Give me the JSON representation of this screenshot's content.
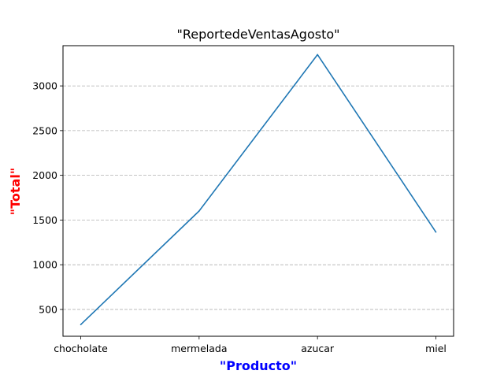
{
  "chart_data": {
    "type": "line",
    "title": "\"ReportedeVentasAgosto\"",
    "xlabel": "\"Producto\"",
    "ylabel": "\"Total\"",
    "categories": [
      "chocholate",
      "mermelada",
      "azucar",
      "miel"
    ],
    "series": [
      {
        "values": [
          330,
          1600,
          3350,
          1365
        ]
      }
    ],
    "ylim": [
      200,
      3450
    ],
    "yticks": [
      500,
      1000,
      1500,
      2000,
      2500,
      3000
    ],
    "grid": "y-dashed",
    "colors": {
      "line": "#1f77b4",
      "xlabel": "#0000ff",
      "ylabel": "#ff0000",
      "grid": "#b0b0b0"
    }
  }
}
